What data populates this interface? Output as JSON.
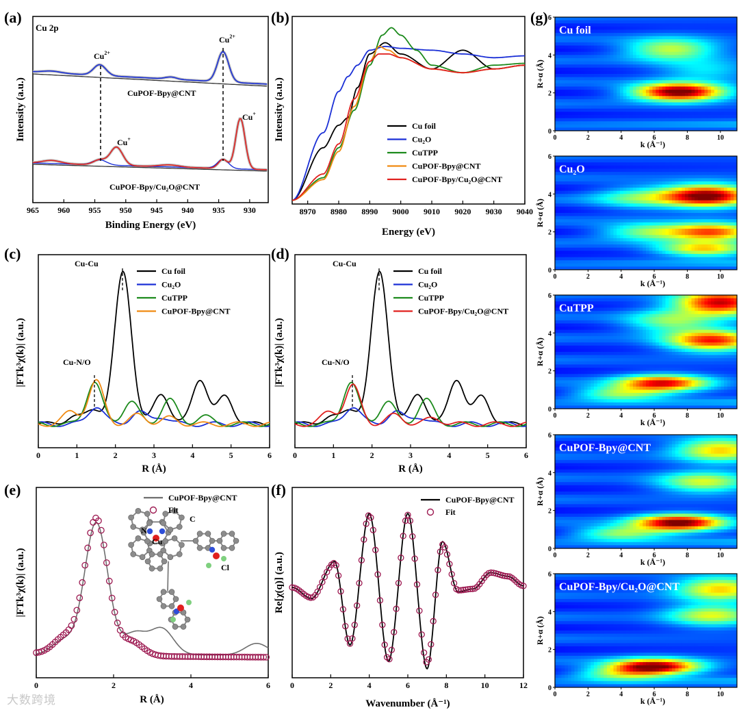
{
  "colors": {
    "black": "#000000",
    "blue": "#1a2fd6",
    "green": "#1c8a1c",
    "orange": "#f08a12",
    "red": "#e0201e",
    "fit": "#9c1850",
    "gray": "#6e6e6e"
  },
  "watermark": "大数跨境",
  "chart_data": [
    {
      "panel": "(a)",
      "type": "line",
      "annotation": "Cu 2p",
      "xlabel": "Binding Energy (eV)",
      "ylabel": "Intensity (a.u.)",
      "xlim": [
        965,
        927
      ],
      "x_reversed": true,
      "xticks": [
        965,
        960,
        955,
        950,
        945,
        940,
        935,
        930
      ],
      "labels": {
        "cu2plus_left": "Cu",
        "cu2plus_right": "Cu",
        "cuplus_left": "Cu",
        "cuplus_right": "Cu",
        "sample_top": "CuPOF-Bpy@CNT",
        "sample_bottom": "CuPOF-Bpy/Cu₂O@CNT"
      },
      "series": [
        {
          "name": "CuPOF-Bpy@CNT",
          "peaks": [
            {
              "center": 954.2,
              "height": 0.3
            },
            {
              "center": 934.3,
              "height": 0.85
            },
            {
              "center": 942.7,
              "height": 0.06
            }
          ]
        },
        {
          "name": "CuPOF-Bpy/Cu₂O@CNT",
          "peaks": [
            {
              "center": 951.5,
              "height": 0.36
            },
            {
              "center": 931.5,
              "height": 1.0
            },
            {
              "center": 954.2,
              "height": 0.1
            },
            {
              "center": 934.3,
              "height": 0.18
            }
          ]
        }
      ]
    },
    {
      "panel": "(b)",
      "type": "line",
      "xlabel": "Energy (eV)",
      "ylabel": "Intensity (a.u.)",
      "xlim": [
        8965,
        9040
      ],
      "xticks": [
        8970,
        8980,
        8990,
        9000,
        9010,
        9020,
        9030,
        9040
      ],
      "series": [
        {
          "name": "Cu foil",
          "x": [
            8965,
            8975,
            8980,
            8983,
            8986,
            8990,
            8995,
            9000,
            9010,
            9020,
            9030,
            9040
          ],
          "y": [
            0.02,
            0.3,
            0.42,
            0.46,
            0.62,
            0.8,
            0.86,
            0.8,
            0.72,
            0.82,
            0.72,
            0.74
          ]
        },
        {
          "name": "Cu₂O",
          "x": [
            8965,
            8975,
            8980,
            8983,
            8986,
            8990,
            8995,
            9000,
            9010,
            9020,
            9030,
            9040
          ],
          "y": [
            0.02,
            0.38,
            0.6,
            0.68,
            0.74,
            0.82,
            0.84,
            0.83,
            0.82,
            0.8,
            0.78,
            0.79
          ]
        },
        {
          "name": "CuTPP",
          "x": [
            8965,
            8975,
            8980,
            8985,
            8990,
            8994,
            8997,
            9000,
            9005,
            9010,
            9020,
            9030,
            9040
          ],
          "y": [
            0.02,
            0.14,
            0.3,
            0.5,
            0.74,
            0.9,
            0.94,
            0.9,
            0.82,
            0.74,
            0.7,
            0.74,
            0.75
          ]
        },
        {
          "name": "CuPOF-Bpy@CNT",
          "x": [
            8965,
            8975,
            8980,
            8985,
            8990,
            8993,
            8996,
            9000,
            9010,
            9020,
            9030,
            9040
          ],
          "y": [
            0.02,
            0.13,
            0.28,
            0.52,
            0.76,
            0.84,
            0.82,
            0.78,
            0.72,
            0.7,
            0.72,
            0.74
          ]
        },
        {
          "name": "CuPOF-Bpy/Cu₂O@CNT",
          "x": [
            8965,
            8975,
            8980,
            8985,
            8990,
            8993,
            8996,
            9000,
            9010,
            9020,
            9030,
            9040
          ],
          "y": [
            0.02,
            0.16,
            0.32,
            0.56,
            0.76,
            0.8,
            0.8,
            0.78,
            0.72,
            0.7,
            0.72,
            0.74
          ]
        }
      ]
    },
    {
      "panel": "(c)",
      "type": "line",
      "xlabel": "R (Å)",
      "ylabel": "|FTk³χ(k)| (a.u.)",
      "xlim": [
        0,
        6
      ],
      "xticks": [
        0,
        1,
        2,
        3,
        4,
        5,
        6
      ],
      "annotations": [
        "Cu-Cu",
        "Cu-N/O"
      ],
      "series": [
        {
          "name": "Cu foil",
          "peaks": [
            {
              "center": 2.2,
              "height": 1.0
            },
            {
              "center": 3.2,
              "height": 0.2
            },
            {
              "center": 4.2,
              "height": 0.3
            },
            {
              "center": 4.85,
              "height": 0.18
            },
            {
              "center": 1.45,
              "height": 0.1
            },
            {
              "center": 0.9,
              "height": 0.05
            }
          ]
        },
        {
          "name": "Cu₂O",
          "peaks": [
            {
              "center": 1.5,
              "height": 0.12
            },
            {
              "center": 2.6,
              "height": 0.08
            },
            {
              "center": 3.2,
              "height": 0.05
            }
          ]
        },
        {
          "name": "CuTPP",
          "peaks": [
            {
              "center": 1.45,
              "height": 0.28
            },
            {
              "center": 2.4,
              "height": 0.15
            },
            {
              "center": 3.4,
              "height": 0.16
            },
            {
              "center": 4.3,
              "height": 0.05
            }
          ]
        },
        {
          "name": "CuPOF-Bpy@CNT",
          "peaks": [
            {
              "center": 1.5,
              "height": 0.28
            },
            {
              "center": 0.85,
              "height": 0.08
            },
            {
              "center": 2.6,
              "height": 0.06
            },
            {
              "center": 3.4,
              "height": 0.04
            }
          ]
        }
      ]
    },
    {
      "panel": "(d)",
      "type": "line",
      "xlabel": "R (Å)",
      "ylabel": "|FTk³χ(k)| (a.u.)",
      "xlim": [
        0,
        6
      ],
      "xticks": [
        0,
        1,
        2,
        3,
        4,
        5,
        6
      ],
      "annotations": [
        "Cu-Cu",
        "Cu-N/O"
      ],
      "series": [
        {
          "name": "Cu foil",
          "peaks": [
            {
              "center": 2.2,
              "height": 1.0
            },
            {
              "center": 3.2,
              "height": 0.2
            },
            {
              "center": 4.2,
              "height": 0.3
            },
            {
              "center": 4.85,
              "height": 0.18
            },
            {
              "center": 1.45,
              "height": 0.1
            },
            {
              "center": 0.9,
              "height": 0.05
            }
          ]
        },
        {
          "name": "Cu₂O",
          "peaks": [
            {
              "center": 1.5,
              "height": 0.12
            },
            {
              "center": 2.6,
              "height": 0.08
            },
            {
              "center": 3.2,
              "height": 0.05
            }
          ]
        },
        {
          "name": "CuTPP",
          "peaks": [
            {
              "center": 1.45,
              "height": 0.28
            },
            {
              "center": 2.4,
              "height": 0.15
            },
            {
              "center": 3.4,
              "height": 0.16
            }
          ]
        },
        {
          "name": "CuPOF-Bpy/Cu₂O@CNT",
          "peaks": [
            {
              "center": 1.5,
              "height": 0.25
            },
            {
              "center": 0.9,
              "height": 0.08
            },
            {
              "center": 2.6,
              "height": 0.06
            },
            {
              "center": 3.6,
              "height": 0.04
            }
          ]
        }
      ]
    },
    {
      "panel": "(e)",
      "type": "line",
      "xlabel": "R (Å)",
      "ylabel": "|FTk³χ(k)| (a.u.)",
      "xlim": [
        0,
        6
      ],
      "xticks": [
        0,
        2,
        4,
        6
      ],
      "inset_labels": [
        "N",
        "Cu",
        "C",
        "Cl"
      ],
      "series": [
        {
          "name": "CuPOF-Bpy@CNT",
          "peaks": [
            {
              "center": 1.55,
              "height": 0.92
            },
            {
              "center": 2.55,
              "height": 0.15
            },
            {
              "center": 3.25,
              "height": 0.18
            },
            {
              "center": 5.7,
              "height": 0.08
            },
            {
              "center": 0.7,
              "height": 0.1
            }
          ]
        },
        {
          "name": "Fit",
          "peaks": [
            {
              "center": 1.55,
              "height": 0.95
            },
            {
              "center": 2.45,
              "height": 0.1
            },
            {
              "center": 0.75,
              "height": 0.12
            }
          ]
        }
      ]
    },
    {
      "panel": "(f)",
      "type": "line",
      "xlabel": "Wavenumber (Å⁻¹)",
      "ylabel": "Re[χ(q)] (a.u.)",
      "xlim": [
        0,
        12
      ],
      "xticks": [
        0,
        2,
        4,
        6,
        8,
        10,
        12
      ],
      "series": [
        {
          "name": "CuPOF-Bpy@CNT",
          "x": [
            0,
            1,
            2.2,
            3.0,
            4.0,
            5.0,
            6.0,
            7.0,
            7.8,
            8.6,
            9.4,
            10.3,
            11.2,
            12
          ],
          "y": [
            0.0,
            -0.15,
            0.35,
            -0.78,
            1.0,
            -1.0,
            1.0,
            -1.1,
            0.62,
            -0.06,
            -0.02,
            0.2,
            0.15,
            0.02
          ]
        },
        {
          "name": "Fit",
          "x": [
            0,
            1,
            2.2,
            3.0,
            4.0,
            5.0,
            6.0,
            7.0,
            7.8,
            8.6,
            9.4,
            10.3,
            11.2,
            12
          ],
          "y": [
            0.0,
            -0.14,
            0.33,
            -0.76,
            0.98,
            -0.98,
            0.98,
            -1.02,
            0.58,
            -0.04,
            -0.02,
            0.2,
            0.15,
            0.02
          ]
        }
      ]
    },
    {
      "panel": "(g)",
      "type": "heatmap",
      "xlabel": "k (Å⁻¹)",
      "ylabel": "R+α (Å)",
      "xlim": [
        0,
        11
      ],
      "ylim": [
        0,
        6
      ],
      "xticks": [
        0,
        2,
        4,
        6,
        8,
        10
      ],
      "yticks": [
        0,
        2,
        4,
        6
      ],
      "colormap": "jet",
      "maps": [
        {
          "name": "Cu foil",
          "blobs": [
            {
              "k": 7.5,
              "r": 2.05,
              "amp": 1.0
            },
            {
              "k": 7.0,
              "r": 4.3,
              "amp": 0.45
            },
            {
              "k": 9.0,
              "r": 3.2,
              "amp": 0.2
            }
          ]
        },
        {
          "name": "Cu₂O",
          "blobs": [
            {
              "k": 9.2,
              "r": 3.9,
              "amp": 0.95
            },
            {
              "k": 9.5,
              "r": 2.0,
              "amp": 0.7
            },
            {
              "k": 9.0,
              "r": 1.1,
              "amp": 0.55
            },
            {
              "k": 5.5,
              "r": 2.0,
              "amp": 0.35
            },
            {
              "k": 5.0,
              "r": 3.8,
              "amp": 0.3
            }
          ]
        },
        {
          "name": "CuTPP",
          "blobs": [
            {
              "k": 10.0,
              "r": 5.6,
              "amp": 0.85
            },
            {
              "k": 9.5,
              "r": 3.6,
              "amp": 0.75
            },
            {
              "k": 6.5,
              "r": 1.35,
              "amp": 0.8
            },
            {
              "k": 4.0,
              "r": 0.8,
              "amp": 0.4
            },
            {
              "k": 7.0,
              "r": 4.6,
              "amp": 0.35
            }
          ]
        },
        {
          "name": "CuPOF-Bpy@CNT",
          "blobs": [
            {
              "k": 7.5,
              "r": 1.35,
              "amp": 0.95
            },
            {
              "k": 10.0,
              "r": 5.2,
              "amp": 0.55
            },
            {
              "k": 9.0,
              "r": 3.5,
              "amp": 0.45
            },
            {
              "k": 4.0,
              "r": 0.8,
              "amp": 0.4
            }
          ]
        },
        {
          "name": "CuPOF-Bpy/Cu₂O@CNT",
          "blobs": [
            {
              "k": 6.0,
              "r": 1.1,
              "amp": 0.95
            },
            {
              "k": 10.0,
              "r": 5.2,
              "amp": 0.55
            },
            {
              "k": 9.5,
              "r": 3.8,
              "amp": 0.45
            },
            {
              "k": 4.0,
              "r": 0.7,
              "amp": 0.35
            }
          ]
        }
      ]
    }
  ]
}
